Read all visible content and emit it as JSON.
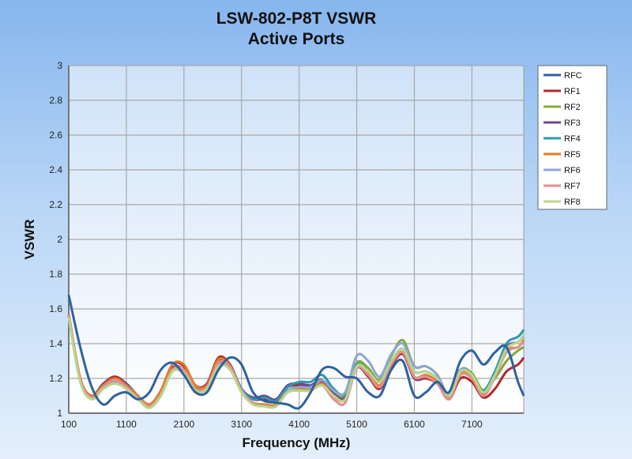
{
  "chart_data": {
    "type": "line",
    "title": "LSW-802-P8T VSWR",
    "subtitle": "Active Ports",
    "xlabel": "Frequency (MHz)",
    "ylabel": "VSWR",
    "xlim": [
      100,
      8000
    ],
    "ylim": [
      1,
      3
    ],
    "xticks": [
      "100",
      "1100",
      "2100",
      "3100",
      "4100",
      "5100",
      "6100",
      "7100"
    ],
    "yticks": [
      "1",
      "1.2",
      "1.4",
      "1.6",
      "1.8",
      "2",
      "2.2",
      "2.4",
      "2.6",
      "2.8",
      "3"
    ],
    "grid": true,
    "legend_position": "right",
    "x": [
      100,
      300,
      500,
      700,
      900,
      1100,
      1300,
      1500,
      1700,
      1900,
      2100,
      2300,
      2500,
      2700,
      2900,
      3100,
      3300,
      3500,
      3700,
      3900,
      4100,
      4300,
      4500,
      4700,
      4900,
      5100,
      5300,
      5500,
      5700,
      5900,
      6100,
      6300,
      6500,
      6700,
      6900,
      7100,
      7300,
      7500,
      7700,
      7900,
      8000
    ],
    "series": [
      {
        "name": "RFC",
        "color": "#2e62a0",
        "values": [
          1.68,
          1.38,
          1.15,
          1.05,
          1.1,
          1.12,
          1.08,
          1.12,
          1.25,
          1.29,
          1.22,
          1.12,
          1.12,
          1.25,
          1.32,
          1.28,
          1.12,
          1.07,
          1.06,
          1.05,
          1.03,
          1.12,
          1.25,
          1.26,
          1.21,
          1.2,
          1.12,
          1.1,
          1.25,
          1.3,
          1.1,
          1.12,
          1.18,
          1.12,
          1.3,
          1.36,
          1.28,
          1.35,
          1.38,
          1.18,
          1.1
        ]
      },
      {
        "name": "RF1",
        "color": "#b22a2a",
        "values": [
          1.57,
          1.2,
          1.1,
          1.17,
          1.21,
          1.17,
          1.1,
          1.05,
          1.13,
          1.28,
          1.27,
          1.16,
          1.17,
          1.32,
          1.28,
          1.14,
          1.08,
          1.08,
          1.07,
          1.15,
          1.16,
          1.16,
          1.19,
          1.1,
          1.08,
          1.26,
          1.21,
          1.14,
          1.27,
          1.34,
          1.2,
          1.2,
          1.17,
          1.08,
          1.2,
          1.18,
          1.09,
          1.14,
          1.24,
          1.28,
          1.32
        ]
      },
      {
        "name": "RF2",
        "color": "#86a83a",
        "values": [
          1.56,
          1.19,
          1.09,
          1.15,
          1.19,
          1.15,
          1.09,
          1.04,
          1.11,
          1.25,
          1.24,
          1.14,
          1.15,
          1.29,
          1.26,
          1.13,
          1.06,
          1.05,
          1.04,
          1.13,
          1.14,
          1.14,
          1.18,
          1.12,
          1.1,
          1.29,
          1.26,
          1.19,
          1.33,
          1.42,
          1.27,
          1.27,
          1.22,
          1.1,
          1.25,
          1.23,
          1.13,
          1.2,
          1.3,
          1.36,
          1.38
        ]
      },
      {
        "name": "RF3",
        "color": "#6a4a8e",
        "values": [
          1.57,
          1.2,
          1.1,
          1.17,
          1.2,
          1.17,
          1.1,
          1.05,
          1.12,
          1.26,
          1.25,
          1.15,
          1.16,
          1.3,
          1.27,
          1.14,
          1.09,
          1.1,
          1.08,
          1.16,
          1.17,
          1.16,
          1.18,
          1.11,
          1.09,
          1.26,
          1.22,
          1.15,
          1.28,
          1.35,
          1.2,
          1.21,
          1.18,
          1.09,
          1.23,
          1.21,
          1.12,
          1.22,
          1.38,
          1.41,
          1.45
        ]
      },
      {
        "name": "RF4",
        "color": "#2e98b0",
        "values": [
          1.57,
          1.19,
          1.1,
          1.16,
          1.19,
          1.16,
          1.1,
          1.04,
          1.12,
          1.25,
          1.24,
          1.15,
          1.16,
          1.29,
          1.27,
          1.14,
          1.08,
          1.09,
          1.07,
          1.15,
          1.18,
          1.18,
          1.22,
          1.14,
          1.11,
          1.28,
          1.24,
          1.18,
          1.3,
          1.37,
          1.24,
          1.24,
          1.2,
          1.11,
          1.25,
          1.2,
          1.13,
          1.24,
          1.4,
          1.44,
          1.48
        ]
      },
      {
        "name": "RF5",
        "color": "#e87a22",
        "values": [
          1.57,
          1.2,
          1.1,
          1.16,
          1.2,
          1.16,
          1.1,
          1.05,
          1.13,
          1.28,
          1.28,
          1.16,
          1.16,
          1.31,
          1.27,
          1.13,
          1.06,
          1.05,
          1.05,
          1.13,
          1.14,
          1.14,
          1.17,
          1.1,
          1.08,
          1.27,
          1.23,
          1.16,
          1.29,
          1.35,
          1.21,
          1.22,
          1.18,
          1.09,
          1.23,
          1.21,
          1.11,
          1.22,
          1.36,
          1.38,
          1.42
        ]
      },
      {
        "name": "RF6",
        "color": "#8aa6d6",
        "values": [
          1.56,
          1.19,
          1.09,
          1.15,
          1.18,
          1.15,
          1.09,
          1.04,
          1.11,
          1.24,
          1.23,
          1.13,
          1.14,
          1.28,
          1.26,
          1.13,
          1.06,
          1.04,
          1.04,
          1.13,
          1.15,
          1.15,
          1.19,
          1.13,
          1.12,
          1.33,
          1.3,
          1.21,
          1.34,
          1.4,
          1.27,
          1.27,
          1.22,
          1.11,
          1.25,
          1.22,
          1.12,
          1.22,
          1.37,
          1.41,
          1.44
        ]
      },
      {
        "name": "RF7",
        "color": "#e09090",
        "values": [
          1.57,
          1.19,
          1.09,
          1.15,
          1.19,
          1.15,
          1.09,
          1.04,
          1.11,
          1.25,
          1.25,
          1.14,
          1.15,
          1.29,
          1.27,
          1.13,
          1.06,
          1.04,
          1.04,
          1.12,
          1.13,
          1.13,
          1.16,
          1.08,
          1.06,
          1.26,
          1.22,
          1.15,
          1.28,
          1.35,
          1.21,
          1.21,
          1.17,
          1.08,
          1.22,
          1.2,
          1.1,
          1.21,
          1.35,
          1.38,
          1.41
        ]
      },
      {
        "name": "RF8",
        "color": "#b8d68a",
        "values": [
          1.55,
          1.18,
          1.08,
          1.14,
          1.17,
          1.14,
          1.08,
          1.03,
          1.1,
          1.24,
          1.23,
          1.13,
          1.14,
          1.27,
          1.25,
          1.12,
          1.05,
          1.04,
          1.04,
          1.12,
          1.13,
          1.13,
          1.16,
          1.1,
          1.08,
          1.27,
          1.24,
          1.18,
          1.3,
          1.37,
          1.24,
          1.24,
          1.2,
          1.1,
          1.24,
          1.22,
          1.12,
          1.22,
          1.37,
          1.41,
          1.45
        ]
      }
    ]
  }
}
